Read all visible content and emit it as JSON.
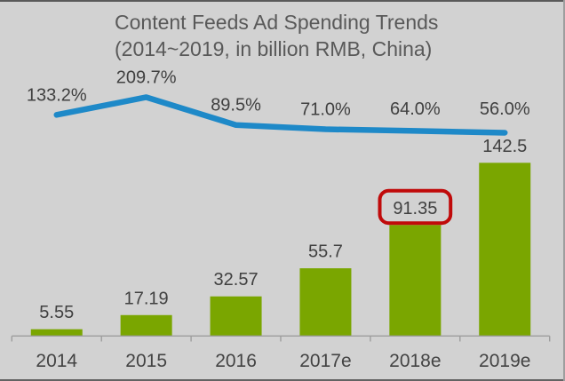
{
  "chart_data": {
    "type": "combo",
    "title": "Content Feeds Ad Spending Trends (2014~2019, in billion RMB, China)",
    "title_line1": "Content Feeds Ad Spending Trends",
    "title_line2": "(2014~2019, in billion RMB, China)",
    "categories": [
      "2014",
      "2015",
      "2016",
      "2017e",
      "2018e",
      "2019e"
    ],
    "series": [
      {
        "name": "ad-spending-bars",
        "type": "bar",
        "values": [
          5.55,
          17.19,
          32.57,
          55.7,
          91.35,
          142.5
        ],
        "labels": [
          "5.55",
          "17.19",
          "32.57",
          "55.7",
          "91.35",
          "142.5"
        ],
        "color": "#7aa600"
      },
      {
        "name": "growth-rate-line",
        "type": "line",
        "values": [
          133.2,
          209.7,
          89.5,
          71.0,
          64.0,
          56.0
        ],
        "labels": [
          "133.2%",
          "209.7%",
          "89.5%",
          "71.0%",
          "64.0%",
          "56.0%"
        ],
        "color": "#1e89c8"
      }
    ],
    "highlight": {
      "series": 0,
      "index": 4,
      "label": "91.35",
      "box_color": "#c00a0a"
    },
    "colors": {
      "background": "#d2d2d2",
      "bar": "#7aa600",
      "line": "#1e89c8",
      "label_text": "#404040",
      "axis_label_text": "#434343",
      "title_text": "#595959",
      "axis_line": "#9d9d9d",
      "highlight_box": "#c00a0a"
    },
    "legend": "none",
    "grid": "off",
    "ylim_bars": [
      0,
      160
    ],
    "ylim_line_percent": [
      0,
      250
    ]
  }
}
